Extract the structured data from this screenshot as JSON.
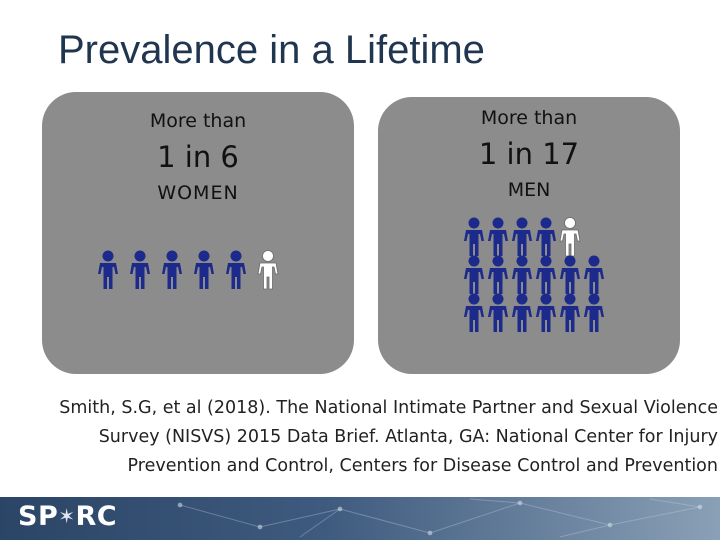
{
  "slide": {
    "title": "Prevalence in a Lifetime"
  },
  "women": {
    "prefix": "More than",
    "ratio": "1 in 6",
    "group": "WOMEN",
    "highlighted": 1,
    "total": 6
  },
  "men": {
    "prefix": "More than",
    "ratio": "1 in 17",
    "group": "MEN",
    "highlighted": 1,
    "total": 17
  },
  "citation": {
    "lines": [
      "Smith, S.G, et al (2018). The National Intimate Partner and Sexual Violence",
      "Survey (NISVS) 2015 Data Brief. Atlanta, GA: National Center for Injury",
      "Prevention and Control, Centers for Disease Control and Prevention"
    ]
  },
  "footer": {
    "logo_left": "SP",
    "logo_star": "✶",
    "logo_right": "RC"
  },
  "colors": {
    "figure": "#1c2a8c",
    "highlight": "#ffffff",
    "panel": "#8c8c8c",
    "title": "#1f3550"
  },
  "icons": [
    "person-icon",
    "sparc-logo"
  ]
}
